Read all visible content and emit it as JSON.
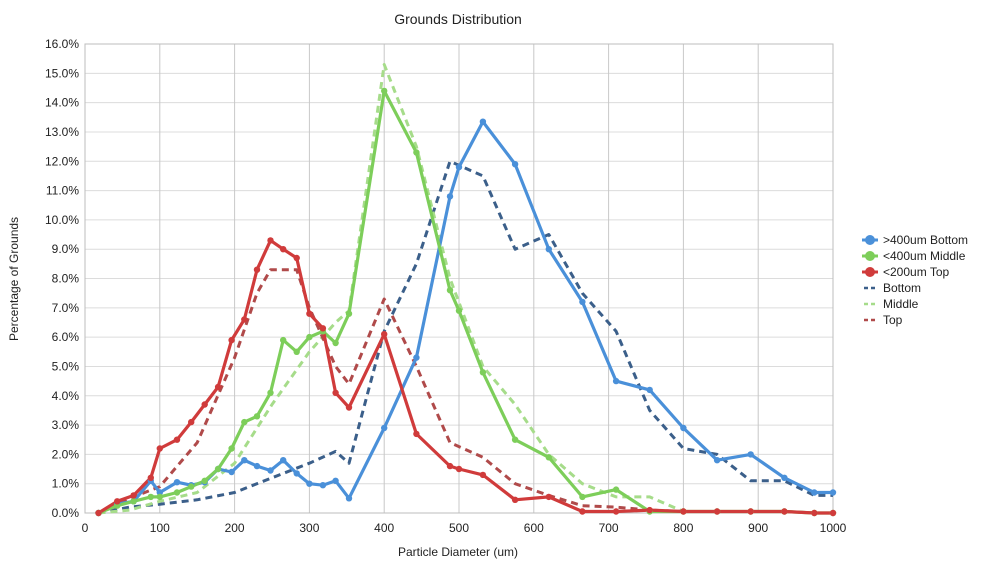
{
  "chart_data": {
    "type": "line",
    "title": "Grounds Distribution",
    "xlabel": "Particle Diameter (um)",
    "ylabel": "Percentage of Grounds",
    "xlim": [
      0,
      1000
    ],
    "ylim": [
      0,
      16
    ],
    "x_ticks": [
      0,
      100,
      200,
      300,
      400,
      500,
      600,
      700,
      800,
      900,
      1000
    ],
    "y_ticks": [
      0,
      1,
      2,
      3,
      4,
      5,
      6,
      7,
      8,
      9,
      10,
      11,
      12,
      13,
      14,
      15,
      16
    ],
    "y_tick_format": "percent_1dp",
    "grid": true,
    "legend_position": "right",
    "series": [
      {
        "name": ">400um Bottom",
        "color": "#4a90d9",
        "style": "solid",
        "markers": true,
        "points": [
          [
            18,
            0.0
          ],
          [
            43,
            0.3
          ],
          [
            65,
            0.4
          ],
          [
            88,
            1.1
          ],
          [
            100,
            0.7
          ],
          [
            123,
            1.05
          ],
          [
            142,
            0.95
          ],
          [
            160,
            1.05
          ],
          [
            178,
            1.5
          ],
          [
            196,
            1.4
          ],
          [
            213,
            1.8
          ],
          [
            230,
            1.6
          ],
          [
            248,
            1.45
          ],
          [
            265,
            1.8
          ],
          [
            283,
            1.35
          ],
          [
            300,
            1.0
          ],
          [
            318,
            0.95
          ],
          [
            335,
            1.1
          ],
          [
            353,
            0.5
          ],
          [
            400,
            2.9
          ],
          [
            443,
            5.3
          ],
          [
            488,
            10.8
          ],
          [
            500,
            11.8
          ],
          [
            532,
            13.35
          ],
          [
            575,
            11.9
          ],
          [
            620,
            9.0
          ],
          [
            665,
            7.2
          ],
          [
            710,
            4.5
          ],
          [
            755,
            4.2
          ],
          [
            800,
            2.9
          ],
          [
            845,
            1.8
          ],
          [
            890,
            2.0
          ],
          [
            935,
            1.2
          ],
          [
            975,
            0.7
          ],
          [
            1000,
            0.7
          ]
        ]
      },
      {
        "name": "<400um Middle",
        "color": "#7dce5a",
        "style": "solid",
        "markers": true,
        "points": [
          [
            18,
            0.0
          ],
          [
            43,
            0.25
          ],
          [
            65,
            0.4
          ],
          [
            88,
            0.55
          ],
          [
            100,
            0.55
          ],
          [
            123,
            0.7
          ],
          [
            142,
            0.9
          ],
          [
            160,
            1.1
          ],
          [
            178,
            1.5
          ],
          [
            196,
            2.2
          ],
          [
            213,
            3.1
          ],
          [
            230,
            3.3
          ],
          [
            248,
            4.1
          ],
          [
            265,
            5.9
          ],
          [
            283,
            5.5
          ],
          [
            300,
            6.0
          ],
          [
            318,
            6.2
          ],
          [
            335,
            5.8
          ],
          [
            353,
            6.8
          ],
          [
            400,
            14.4
          ],
          [
            443,
            12.3
          ],
          [
            488,
            7.6
          ],
          [
            500,
            6.9
          ],
          [
            532,
            4.8
          ],
          [
            575,
            2.5
          ],
          [
            620,
            1.9
          ],
          [
            665,
            0.55
          ],
          [
            710,
            0.8
          ],
          [
            755,
            0.05
          ],
          [
            800,
            0.05
          ],
          [
            845,
            0.05
          ],
          [
            890,
            0.05
          ],
          [
            935,
            0.05
          ],
          [
            975,
            0.0
          ],
          [
            1000,
            0.0
          ]
        ]
      },
      {
        "name": "<200um Top",
        "color": "#d03b3b",
        "style": "solid",
        "markers": true,
        "points": [
          [
            18,
            0.0
          ],
          [
            43,
            0.4
          ],
          [
            65,
            0.6
          ],
          [
            88,
            1.2
          ],
          [
            100,
            2.2
          ],
          [
            123,
            2.5
          ],
          [
            142,
            3.1
          ],
          [
            160,
            3.7
          ],
          [
            178,
            4.3
          ],
          [
            196,
            5.9
          ],
          [
            213,
            6.6
          ],
          [
            230,
            8.3
          ],
          [
            248,
            9.3
          ],
          [
            265,
            9.0
          ],
          [
            283,
            8.7
          ],
          [
            300,
            6.8
          ],
          [
            318,
            6.3
          ],
          [
            335,
            4.1
          ],
          [
            353,
            3.6
          ],
          [
            400,
            6.1
          ],
          [
            443,
            2.7
          ],
          [
            488,
            1.6
          ],
          [
            500,
            1.5
          ],
          [
            532,
            1.3
          ],
          [
            575,
            0.45
          ],
          [
            620,
            0.55
          ],
          [
            665,
            0.05
          ],
          [
            710,
            0.05
          ],
          [
            755,
            0.1
          ],
          [
            800,
            0.05
          ],
          [
            845,
            0.05
          ],
          [
            890,
            0.05
          ],
          [
            935,
            0.05
          ],
          [
            975,
            0.0
          ],
          [
            1000,
            0.0
          ]
        ]
      },
      {
        "name": "Bottom",
        "color": "#3b5f8a",
        "style": "dashed",
        "markers": false,
        "points": [
          [
            18,
            0.0
          ],
          [
            60,
            0.2
          ],
          [
            100,
            0.3
          ],
          [
            150,
            0.45
          ],
          [
            200,
            0.7
          ],
          [
            250,
            1.2
          ],
          [
            300,
            1.7
          ],
          [
            335,
            2.1
          ],
          [
            353,
            1.7
          ],
          [
            400,
            6.2
          ],
          [
            443,
            8.5
          ],
          [
            488,
            12.0
          ],
          [
            532,
            11.5
          ],
          [
            575,
            9.0
          ],
          [
            620,
            9.5
          ],
          [
            665,
            7.5
          ],
          [
            710,
            6.2
          ],
          [
            755,
            3.5
          ],
          [
            800,
            2.2
          ],
          [
            845,
            2.0
          ],
          [
            890,
            1.1
          ],
          [
            935,
            1.1
          ],
          [
            975,
            0.6
          ],
          [
            1000,
            0.6
          ]
        ]
      },
      {
        "name": "Middle",
        "color": "#a6dc8a",
        "style": "dashed",
        "markers": false,
        "points": [
          [
            18,
            0.0
          ],
          [
            60,
            0.1
          ],
          [
            100,
            0.4
          ],
          [
            150,
            0.7
          ],
          [
            200,
            1.7
          ],
          [
            250,
            3.7
          ],
          [
            300,
            5.5
          ],
          [
            335,
            6.5
          ],
          [
            353,
            6.9
          ],
          [
            400,
            15.3
          ],
          [
            443,
            12.5
          ],
          [
            488,
            8.0
          ],
          [
            532,
            5.0
          ],
          [
            575,
            3.7
          ],
          [
            620,
            2.0
          ],
          [
            665,
            1.0
          ],
          [
            710,
            0.55
          ],
          [
            755,
            0.55
          ],
          [
            800,
            0.05
          ],
          [
            845,
            0.05
          ],
          [
            890,
            0.05
          ],
          [
            935,
            0.05
          ],
          [
            975,
            0.0
          ],
          [
            1000,
            0.0
          ]
        ]
      },
      {
        "name": "Top",
        "color": "#b04a4a",
        "style": "dashed",
        "markers": false,
        "points": [
          [
            18,
            0.0
          ],
          [
            60,
            0.5
          ],
          [
            100,
            0.9
          ],
          [
            150,
            2.4
          ],
          [
            200,
            5.3
          ],
          [
            230,
            7.5
          ],
          [
            248,
            8.3
          ],
          [
            283,
            8.3
          ],
          [
            300,
            7.0
          ],
          [
            335,
            5.0
          ],
          [
            353,
            4.4
          ],
          [
            400,
            7.3
          ],
          [
            443,
            5.0
          ],
          [
            488,
            2.4
          ],
          [
            532,
            1.9
          ],
          [
            575,
            1.0
          ],
          [
            620,
            0.6
          ],
          [
            665,
            0.25
          ],
          [
            710,
            0.2
          ],
          [
            755,
            0.1
          ],
          [
            800,
            0.05
          ],
          [
            845,
            0.05
          ],
          [
            890,
            0.05
          ],
          [
            935,
            0.05
          ],
          [
            975,
            0.0
          ],
          [
            1000,
            0.0
          ]
        ]
      }
    ]
  }
}
